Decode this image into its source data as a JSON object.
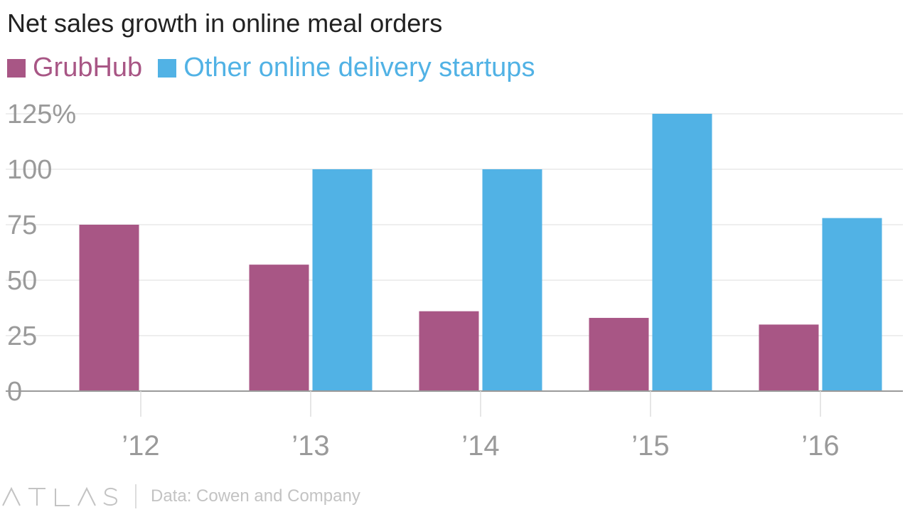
{
  "header": {
    "title": "Net sales growth in online meal orders"
  },
  "brand": {
    "logo_text": "ATLAS"
  },
  "footer": {
    "source": "Data: Cowen and Company"
  },
  "chart_data": {
    "type": "bar",
    "title": "Net sales growth in online meal orders",
    "xlabel": "",
    "ylabel": "",
    "categories": [
      "’12",
      "’13",
      "’14",
      "’15",
      "’16"
    ],
    "series": [
      {
        "name": "GrubHub",
        "color": "#a85685",
        "values": [
          75,
          57,
          36,
          33,
          30
        ]
      },
      {
        "name": "Other online delivery startups",
        "color": "#51b2e5",
        "values": [
          null,
          100,
          100,
          125,
          78
        ]
      }
    ],
    "ylim": [
      0,
      125
    ],
    "yticks": [
      0,
      25,
      50,
      75,
      100,
      125
    ],
    "ytick_labels": [
      "0",
      "25",
      "50",
      "75",
      "100",
      "125%"
    ],
    "grid": true,
    "legend_position": "top-left"
  }
}
